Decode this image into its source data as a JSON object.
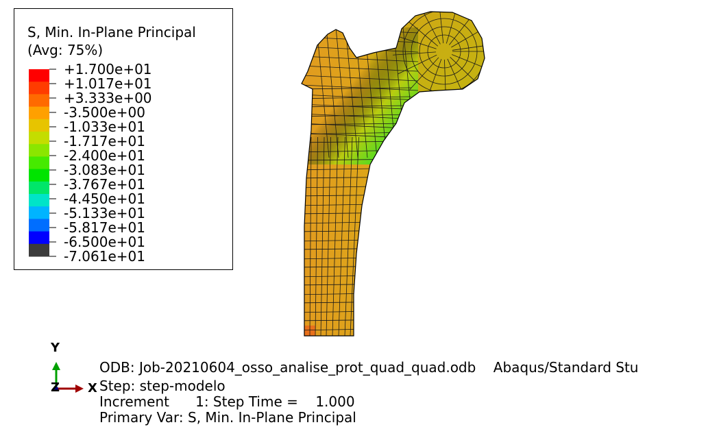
{
  "legend": {
    "title_line1": "S, Min. In-Plane Principal",
    "title_line2": "(Avg: 75%)",
    "colors": [
      "#ff0000",
      "#ff3c00",
      "#ff6a00",
      "#ffa000",
      "#e7c400",
      "#c4dd00",
      "#8be600",
      "#46ea00",
      "#00e400",
      "#00e669",
      "#00e4c8",
      "#00b4ff",
      "#006eff",
      "#0000ff",
      "#3c3c3c"
    ],
    "values": [
      "+1.700e+01",
      "+1.017e+01",
      "+3.333e+00",
      "-3.500e+00",
      "-1.033e+01",
      "-1.717e+01",
      "-2.400e+01",
      "-3.083e+01",
      "-3.767e+01",
      "-4.450e+01",
      "-5.133e+01",
      "-5.817e+01",
      "-6.500e+01",
      "-7.061e+01"
    ]
  },
  "triad": {
    "y_label": "Y",
    "x_label": "X",
    "z_label": "Z",
    "colors": {
      "y": "#00a000",
      "x": "#a00000",
      "z": "#000080"
    }
  },
  "info": {
    "odb_line": "ODB: Job-20210604_osso_analise_prot_quad_quad.odb    Abaqus/Standard Stu",
    "step_line": "Step: step-modelo",
    "increment_line": "Increment      1: Step Time =    1.000",
    "primary_var_line": "Primary Var: S, Min. In-Plane Principal"
  },
  "model": {
    "mesh_color": "#1a1a1a",
    "bone_fill": "#d9a514"
  }
}
